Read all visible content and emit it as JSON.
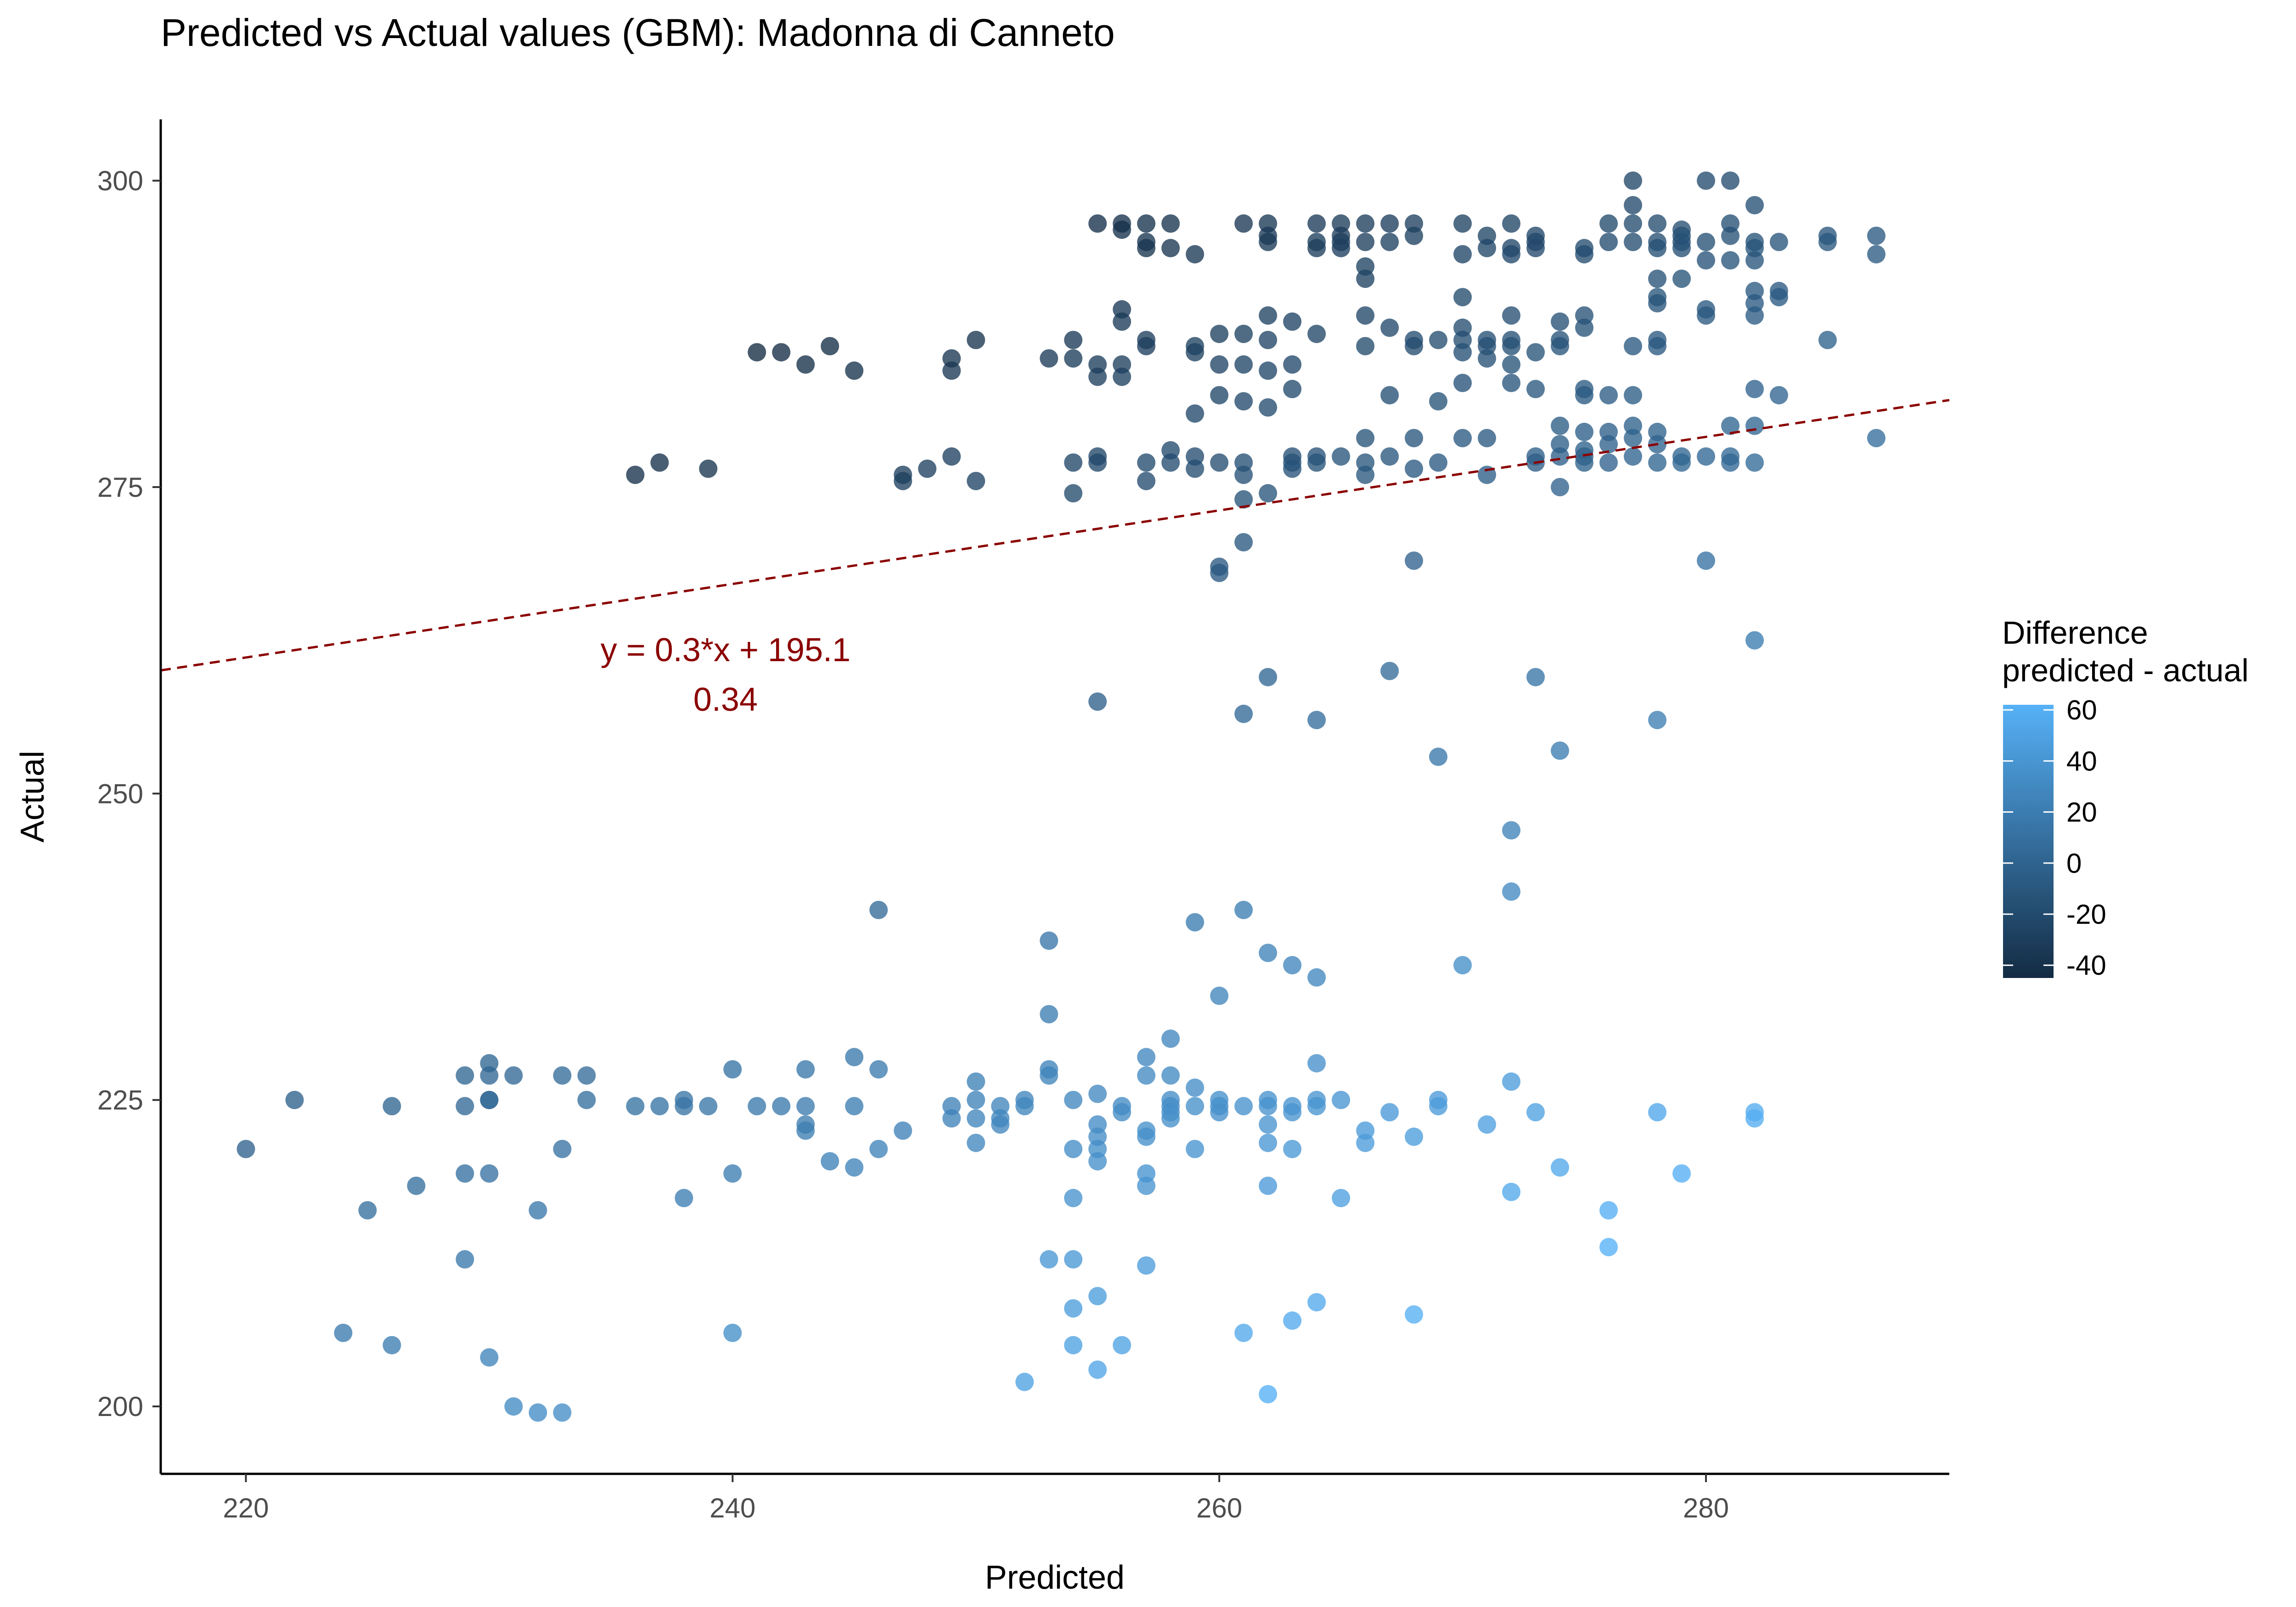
{
  "chart_data": {
    "type": "scatter",
    "title": "Predicted vs Actual values (GBM): Madonna di Canneto",
    "xlabel": "Predicted",
    "ylabel": "Actual",
    "xlim": [
      216.5,
      290
    ],
    "ylim": [
      194.5,
      305
    ],
    "xticks": [
      220,
      240,
      260,
      280
    ],
    "yticks": [
      200,
      225,
      250,
      275,
      300
    ],
    "grid": false,
    "legend": {
      "title_line1": "Difference",
      "title_line2": "predicted - actual",
      "position": "right",
      "ticks": [
        60,
        40,
        20,
        0,
        -20,
        -40
      ],
      "range": [
        -45,
        62
      ],
      "color_low": "#132b43",
      "color_high": "#56b1f7"
    },
    "regression": {
      "slope": 0.3,
      "intercept": 195.1,
      "color": "#8b0000",
      "style": "dashed",
      "label_line1": "y = 0.3*x + 195.1",
      "label_line2": "0.34"
    },
    "points": [
      [
        220,
        221
      ],
      [
        222,
        225
      ],
      [
        224,
        206
      ],
      [
        225,
        216
      ],
      [
        226,
        224.5
      ],
      [
        226,
        205
      ],
      [
        227,
        218
      ],
      [
        229,
        227
      ],
      [
        229,
        224.5
      ],
      [
        229,
        219
      ],
      [
        229,
        212
      ],
      [
        230,
        228
      ],
      [
        230,
        227
      ],
      [
        230,
        225
      ],
      [
        230,
        225
      ],
      [
        230,
        219
      ],
      [
        230,
        204
      ],
      [
        231,
        227
      ],
      [
        231,
        200
      ],
      [
        232,
        216
      ],
      [
        232,
        199.5
      ],
      [
        233,
        227
      ],
      [
        233,
        221
      ],
      [
        233,
        199.5
      ],
      [
        234,
        227
      ],
      [
        234,
        225
      ],
      [
        236,
        276
      ],
      [
        236,
        224.5
      ],
      [
        237,
        277
      ],
      [
        237,
        224.5
      ],
      [
        238,
        225
      ],
      [
        238,
        224.5
      ],
      [
        238,
        217
      ],
      [
        239,
        276.5
      ],
      [
        239,
        224.5
      ],
      [
        240,
        227.5
      ],
      [
        240,
        219
      ],
      [
        240,
        206
      ],
      [
        241,
        286
      ],
      [
        241,
        224.5
      ],
      [
        242,
        286
      ],
      [
        242,
        224.5
      ],
      [
        243,
        285
      ],
      [
        243,
        227.5
      ],
      [
        243,
        224.5
      ],
      [
        243,
        223
      ],
      [
        243,
        222.5
      ],
      [
        244,
        286.5
      ],
      [
        244,
        220
      ],
      [
        245,
        284.5
      ],
      [
        245,
        228.5
      ],
      [
        245,
        224.5
      ],
      [
        245,
        219.5
      ],
      [
        246,
        240.5
      ],
      [
        246,
        227.5
      ],
      [
        246,
        221
      ],
      [
        247,
        276
      ],
      [
        247,
        275.5
      ],
      [
        247,
        222.5
      ],
      [
        248,
        276.5
      ],
      [
        249,
        285.5
      ],
      [
        249,
        284.5
      ],
      [
        249,
        277.5
      ],
      [
        249,
        224.5
      ],
      [
        249,
        223.5
      ],
      [
        250,
        287
      ],
      [
        250,
        275.5
      ],
      [
        250,
        226.5
      ],
      [
        250,
        225
      ],
      [
        250,
        223.5
      ],
      [
        250,
        221.5
      ],
      [
        251,
        224.5
      ],
      [
        251,
        223.5
      ],
      [
        251,
        223
      ],
      [
        252,
        225
      ],
      [
        252,
        224.5
      ],
      [
        252,
        202
      ],
      [
        253,
        285.5
      ],
      [
        253,
        238
      ],
      [
        253,
        232
      ],
      [
        253,
        227.5
      ],
      [
        253,
        227
      ],
      [
        253,
        212
      ],
      [
        254,
        287
      ],
      [
        254,
        285.5
      ],
      [
        254,
        277
      ],
      [
        254,
        274.5
      ],
      [
        254,
        225
      ],
      [
        254,
        221
      ],
      [
        254,
        217
      ],
      [
        254,
        212
      ],
      [
        254,
        208
      ],
      [
        254,
        205
      ],
      [
        255,
        296.5
      ],
      [
        255,
        285
      ],
      [
        255,
        284
      ],
      [
        255,
        277.5
      ],
      [
        255,
        277
      ],
      [
        255,
        257.5
      ],
      [
        255,
        225.5
      ],
      [
        255,
        223
      ],
      [
        255,
        222
      ],
      [
        255,
        221
      ],
      [
        255,
        220
      ],
      [
        255,
        209
      ],
      [
        255,
        203
      ],
      [
        256,
        296.5
      ],
      [
        256,
        296
      ],
      [
        256,
        289.5
      ],
      [
        256,
        288.5
      ],
      [
        256,
        285
      ],
      [
        256,
        284
      ],
      [
        256,
        224.5
      ],
      [
        256,
        224
      ],
      [
        256,
        205
      ],
      [
        257,
        296.5
      ],
      [
        257,
        295
      ],
      [
        257,
        294.5
      ],
      [
        257,
        287
      ],
      [
        257,
        286.5
      ],
      [
        257,
        277
      ],
      [
        257,
        275.5
      ],
      [
        257,
        228.5
      ],
      [
        257,
        227
      ],
      [
        257,
        222.5
      ],
      [
        257,
        222
      ],
      [
        257,
        219
      ],
      [
        257,
        218
      ],
      [
        257,
        211.5
      ],
      [
        258,
        296.5
      ],
      [
        258,
        294.5
      ],
      [
        258,
        278
      ],
      [
        258,
        277
      ],
      [
        258,
        230
      ],
      [
        258,
        227
      ],
      [
        258,
        225
      ],
      [
        258,
        224.5
      ],
      [
        258,
        224
      ],
      [
        258,
        223.5
      ],
      [
        259,
        294
      ],
      [
        259,
        286.5
      ],
      [
        259,
        286
      ],
      [
        259,
        281
      ],
      [
        259,
        277.5
      ],
      [
        259,
        276.5
      ],
      [
        259,
        239.5
      ],
      [
        259,
        226
      ],
      [
        259,
        224.5
      ],
      [
        259,
        221
      ],
      [
        260,
        287.5
      ],
      [
        260,
        285
      ],
      [
        260,
        282.5
      ],
      [
        260,
        277
      ],
      [
        260,
        268.5
      ],
      [
        260,
        268
      ],
      [
        260,
        233.5
      ],
      [
        260,
        225
      ],
      [
        260,
        224.5
      ],
      [
        260,
        224
      ],
      [
        261,
        296.5
      ],
      [
        261,
        287.5
      ],
      [
        261,
        285
      ],
      [
        261,
        282
      ],
      [
        261,
        277
      ],
      [
        261,
        276
      ],
      [
        261,
        274
      ],
      [
        261,
        270.5
      ],
      [
        261,
        256.5
      ],
      [
        261,
        240.5
      ],
      [
        261,
        224.5
      ],
      [
        261,
        206
      ],
      [
        262,
        296.5
      ],
      [
        262,
        295.5
      ],
      [
        262,
        295
      ],
      [
        262,
        289
      ],
      [
        262,
        287
      ],
      [
        262,
        284.5
      ],
      [
        262,
        281.5
      ],
      [
        262,
        274.5
      ],
      [
        262,
        259.5
      ],
      [
        262,
        237
      ],
      [
        262,
        225
      ],
      [
        262,
        224.5
      ],
      [
        262,
        223
      ],
      [
        262,
        221.5
      ],
      [
        262,
        218
      ],
      [
        262,
        201
      ],
      [
        263,
        288.5
      ],
      [
        263,
        285
      ],
      [
        263,
        283
      ],
      [
        263,
        277.5
      ],
      [
        263,
        277
      ],
      [
        263,
        276.5
      ],
      [
        263,
        236
      ],
      [
        263,
        224.5
      ],
      [
        263,
        224
      ],
      [
        263,
        221
      ],
      [
        263,
        207
      ],
      [
        264,
        296.5
      ],
      [
        264,
        295
      ],
      [
        264,
        294.5
      ],
      [
        264,
        287.5
      ],
      [
        264,
        277.5
      ],
      [
        264,
        277
      ],
      [
        264,
        256
      ],
      [
        264,
        235
      ],
      [
        264,
        228
      ],
      [
        264,
        225
      ],
      [
        264,
        224.5
      ],
      [
        264,
        208.5
      ],
      [
        265,
        296.5
      ],
      [
        265,
        295.5
      ],
      [
        265,
        295
      ],
      [
        265,
        294.5
      ],
      [
        265,
        277.5
      ],
      [
        265,
        225
      ],
      [
        265,
        217
      ],
      [
        266,
        296.5
      ],
      [
        266,
        295
      ],
      [
        266,
        293
      ],
      [
        266,
        292
      ],
      [
        266,
        289
      ],
      [
        266,
        286.5
      ],
      [
        266,
        279
      ],
      [
        266,
        277
      ],
      [
        266,
        276
      ],
      [
        266,
        222.5
      ],
      [
        266,
        221.5
      ],
      [
        267,
        296.5
      ],
      [
        267,
        295
      ],
      [
        267,
        288
      ],
      [
        267,
        282.5
      ],
      [
        267,
        277.5
      ],
      [
        267,
        260
      ],
      [
        267,
        224
      ],
      [
        268,
        296.5
      ],
      [
        268,
        295.5
      ],
      [
        268,
        287
      ],
      [
        268,
        286.5
      ],
      [
        268,
        279
      ],
      [
        268,
        276.5
      ],
      [
        268,
        269
      ],
      [
        268,
        222
      ],
      [
        268,
        207.5
      ],
      [
        269,
        287
      ],
      [
        269,
        282
      ],
      [
        269,
        277
      ],
      [
        269,
        253
      ],
      [
        269,
        225
      ],
      [
        269,
        224.5
      ],
      [
        270,
        296.5
      ],
      [
        270,
        294
      ],
      [
        270,
        290.5
      ],
      [
        270,
        288
      ],
      [
        270,
        287
      ],
      [
        270,
        286
      ],
      [
        270,
        283.5
      ],
      [
        270,
        279
      ],
      [
        270,
        236
      ],
      [
        271,
        295.5
      ],
      [
        271,
        294.5
      ],
      [
        271,
        287
      ],
      [
        271,
        286.5
      ],
      [
        271,
        285.5
      ],
      [
        271,
        279
      ],
      [
        271,
        276
      ],
      [
        271,
        223
      ],
      [
        272,
        296.5
      ],
      [
        272,
        294.5
      ],
      [
        272,
        294
      ],
      [
        272,
        289
      ],
      [
        272,
        287
      ],
      [
        272,
        286.5
      ],
      [
        272,
        285
      ],
      [
        272,
        283.5
      ],
      [
        272,
        247
      ],
      [
        272,
        242
      ],
      [
        272,
        226.5
      ],
      [
        272,
        217.5
      ],
      [
        273,
        295.5
      ],
      [
        273,
        295
      ],
      [
        273,
        294.5
      ],
      [
        273,
        286
      ],
      [
        273,
        283
      ],
      [
        273,
        277.5
      ],
      [
        273,
        277
      ],
      [
        273,
        259.5
      ],
      [
        273,
        224
      ],
      [
        274,
        288.5
      ],
      [
        274,
        287
      ],
      [
        274,
        286.5
      ],
      [
        274,
        280
      ],
      [
        274,
        278.5
      ],
      [
        274,
        277.5
      ],
      [
        274,
        275
      ],
      [
        274,
        253.5
      ],
      [
        274,
        219.5
      ],
      [
        275,
        294.5
      ],
      [
        275,
        294
      ],
      [
        275,
        289
      ],
      [
        275,
        288
      ],
      [
        275,
        283
      ],
      [
        275,
        282.5
      ],
      [
        275,
        279.5
      ],
      [
        275,
        278
      ],
      [
        275,
        277.5
      ],
      [
        275,
        277
      ],
      [
        276,
        296.5
      ],
      [
        276,
        295
      ],
      [
        276,
        282.5
      ],
      [
        276,
        279.5
      ],
      [
        276,
        278.5
      ],
      [
        276,
        277
      ],
      [
        276,
        216
      ],
      [
        276,
        213
      ],
      [
        277,
        300
      ],
      [
        277,
        298
      ],
      [
        277,
        296.5
      ],
      [
        277,
        295
      ],
      [
        277,
        286.5
      ],
      [
        277,
        282.5
      ],
      [
        277,
        280
      ],
      [
        277,
        279
      ],
      [
        277,
        277.5
      ],
      [
        278,
        296.5
      ],
      [
        278,
        295
      ],
      [
        278,
        294.5
      ],
      [
        278,
        292
      ],
      [
        278,
        290.5
      ],
      [
        278,
        290
      ],
      [
        278,
        287
      ],
      [
        278,
        286.5
      ],
      [
        278,
        279.5
      ],
      [
        278,
        278.5
      ],
      [
        278,
        277
      ],
      [
        278,
        256
      ],
      [
        278,
        224
      ],
      [
        279,
        296
      ],
      [
        279,
        295.5
      ],
      [
        279,
        295
      ],
      [
        279,
        294.5
      ],
      [
        279,
        292
      ],
      [
        279,
        277.5
      ],
      [
        279,
        277
      ],
      [
        279,
        219
      ],
      [
        280,
        300
      ],
      [
        280,
        295
      ],
      [
        280,
        293.5
      ],
      [
        280,
        289.5
      ],
      [
        280,
        289
      ],
      [
        280,
        277.5
      ],
      [
        280,
        269
      ],
      [
        281,
        300
      ],
      [
        281,
        296.5
      ],
      [
        281,
        295.5
      ],
      [
        281,
        293.5
      ],
      [
        281,
        280
      ],
      [
        281,
        277.5
      ],
      [
        281,
        277
      ],
      [
        282,
        298
      ],
      [
        282,
        295
      ],
      [
        282,
        294.5
      ],
      [
        282,
        293.5
      ],
      [
        282,
        291
      ],
      [
        282,
        290
      ],
      [
        282,
        289
      ],
      [
        282,
        283
      ],
      [
        282,
        280
      ],
      [
        282,
        277
      ],
      [
        282,
        262.5
      ],
      [
        282,
        224
      ],
      [
        282,
        223.5
      ],
      [
        283,
        295
      ],
      [
        283,
        291
      ],
      [
        283,
        290.5
      ],
      [
        283,
        282.5
      ],
      [
        285,
        295.5
      ],
      [
        285,
        295
      ],
      [
        285,
        287
      ],
      [
        287,
        295.5
      ],
      [
        287,
        294
      ],
      [
        287,
        279
      ]
    ]
  }
}
